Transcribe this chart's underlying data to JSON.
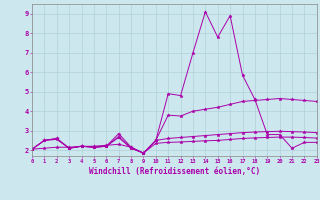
{
  "xlabel": "Windchill (Refroidissement éolien,°C)",
  "bg_color": "#cce8ee",
  "grid_color": "#b0d0d8",
  "line_color": "#aa00aa",
  "x_values": [
    0,
    1,
    2,
    3,
    4,
    5,
    6,
    7,
    8,
    9,
    10,
    11,
    12,
    13,
    14,
    15,
    16,
    17,
    18,
    19,
    20,
    21,
    22,
    23
  ],
  "series1": [
    2.05,
    2.5,
    2.6,
    2.1,
    2.2,
    2.15,
    2.2,
    2.85,
    2.15,
    1.85,
    2.5,
    4.9,
    4.8,
    7.0,
    9.1,
    7.8,
    8.9,
    5.85,
    4.6,
    2.8,
    2.8,
    2.1,
    2.4,
    2.4
  ],
  "series2": [
    2.05,
    2.5,
    2.6,
    2.1,
    2.2,
    2.15,
    2.2,
    2.7,
    2.1,
    1.85,
    2.5,
    3.8,
    3.75,
    4.0,
    4.1,
    4.2,
    4.35,
    4.5,
    4.55,
    4.6,
    4.65,
    4.6,
    4.55,
    4.5
  ],
  "series3": [
    2.05,
    2.5,
    2.55,
    2.1,
    2.2,
    2.15,
    2.2,
    2.65,
    2.1,
    1.85,
    2.5,
    2.6,
    2.65,
    2.7,
    2.75,
    2.8,
    2.85,
    2.9,
    2.93,
    2.95,
    2.97,
    2.95,
    2.93,
    2.9
  ],
  "series4": [
    2.05,
    2.1,
    2.15,
    2.15,
    2.2,
    2.2,
    2.25,
    2.3,
    2.15,
    1.85,
    2.35,
    2.4,
    2.42,
    2.45,
    2.48,
    2.5,
    2.55,
    2.6,
    2.63,
    2.65,
    2.67,
    2.67,
    2.65,
    2.62
  ],
  "ylim": [
    1.7,
    9.5
  ],
  "xlim": [
    0,
    23
  ],
  "yticks": [
    2,
    3,
    4,
    5,
    6,
    7,
    8,
    9
  ],
  "xticks": [
    0,
    1,
    2,
    3,
    4,
    5,
    6,
    7,
    8,
    9,
    10,
    11,
    12,
    13,
    14,
    15,
    16,
    17,
    18,
    19,
    20,
    21,
    22,
    23
  ]
}
